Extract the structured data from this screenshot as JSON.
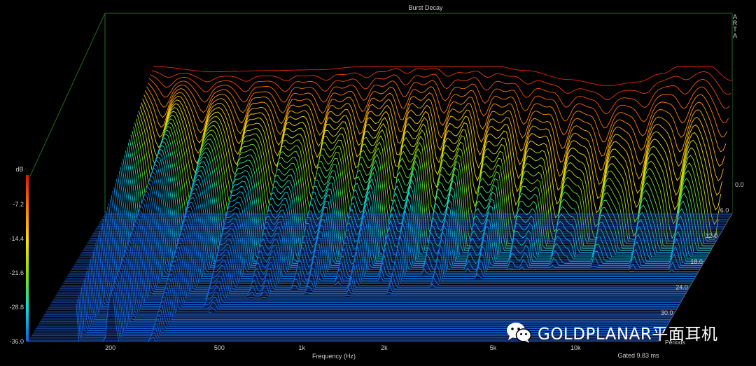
{
  "chart_data": {
    "type": "waterfall",
    "title": "Burst Decay",
    "software_mark": "ARTA",
    "xlabel": "Frequency (Hz)",
    "x_scale": "log",
    "x_ticks": [
      {
        "value": 200,
        "label": "200"
      },
      {
        "value": 500,
        "label": "500"
      },
      {
        "value": 1000,
        "label": "1k"
      },
      {
        "value": 2000,
        "label": "2k"
      },
      {
        "value": 5000,
        "label": "5k"
      },
      {
        "value": 10000,
        "label": "10k"
      }
    ],
    "xlim": [
      100,
      20000
    ],
    "zlabel": "dB",
    "zlim": [
      -36,
      0
    ],
    "z_ticks": [
      "-7.2",
      "-14.4",
      "-21.6",
      "-28.8",
      "-36.0"
    ],
    "depth_label": "Periods",
    "depth_ticks": [
      "0.0",
      "6.0",
      "12.0",
      "18.0",
      "24.0",
      "30.0"
    ],
    "depth_lim": [
      0,
      30
    ],
    "gate_note": "Gated 9.83 ms",
    "colormap": [
      "#e01010",
      "#ff8000",
      "#ffe000",
      "#80e000",
      "#00e0e0",
      "#1060e0"
    ],
    "grid": false,
    "first_slice_db": [
      {
        "f": 150,
        "db": 0
      },
      {
        "f": 250,
        "db": -1.3
      },
      {
        "f": 400,
        "db": -1.0
      },
      {
        "f": 600,
        "db": -0.8
      },
      {
        "f": 900,
        "db": 0.0
      },
      {
        "f": 1300,
        "db": 1.2
      },
      {
        "f": 1600,
        "db": 1.2
      },
      {
        "f": 2000,
        "db": 0.3
      },
      {
        "f": 2500,
        "db": 0.5
      },
      {
        "f": 3500,
        "db": -1.0
      },
      {
        "f": 5000,
        "db": -3.2
      },
      {
        "f": 7000,
        "db": -4.7
      },
      {
        "f": 9000,
        "db": -3.8
      },
      {
        "f": 11000,
        "db": -1.8
      },
      {
        "f": 13000,
        "db": 0.2
      },
      {
        "f": 16000,
        "db": 0.6
      },
      {
        "f": 20000,
        "db": -3.5
      }
    ]
  },
  "watermark": {
    "icon": "wechat-icon",
    "text": "GOLDPLANAR平面耳机"
  }
}
